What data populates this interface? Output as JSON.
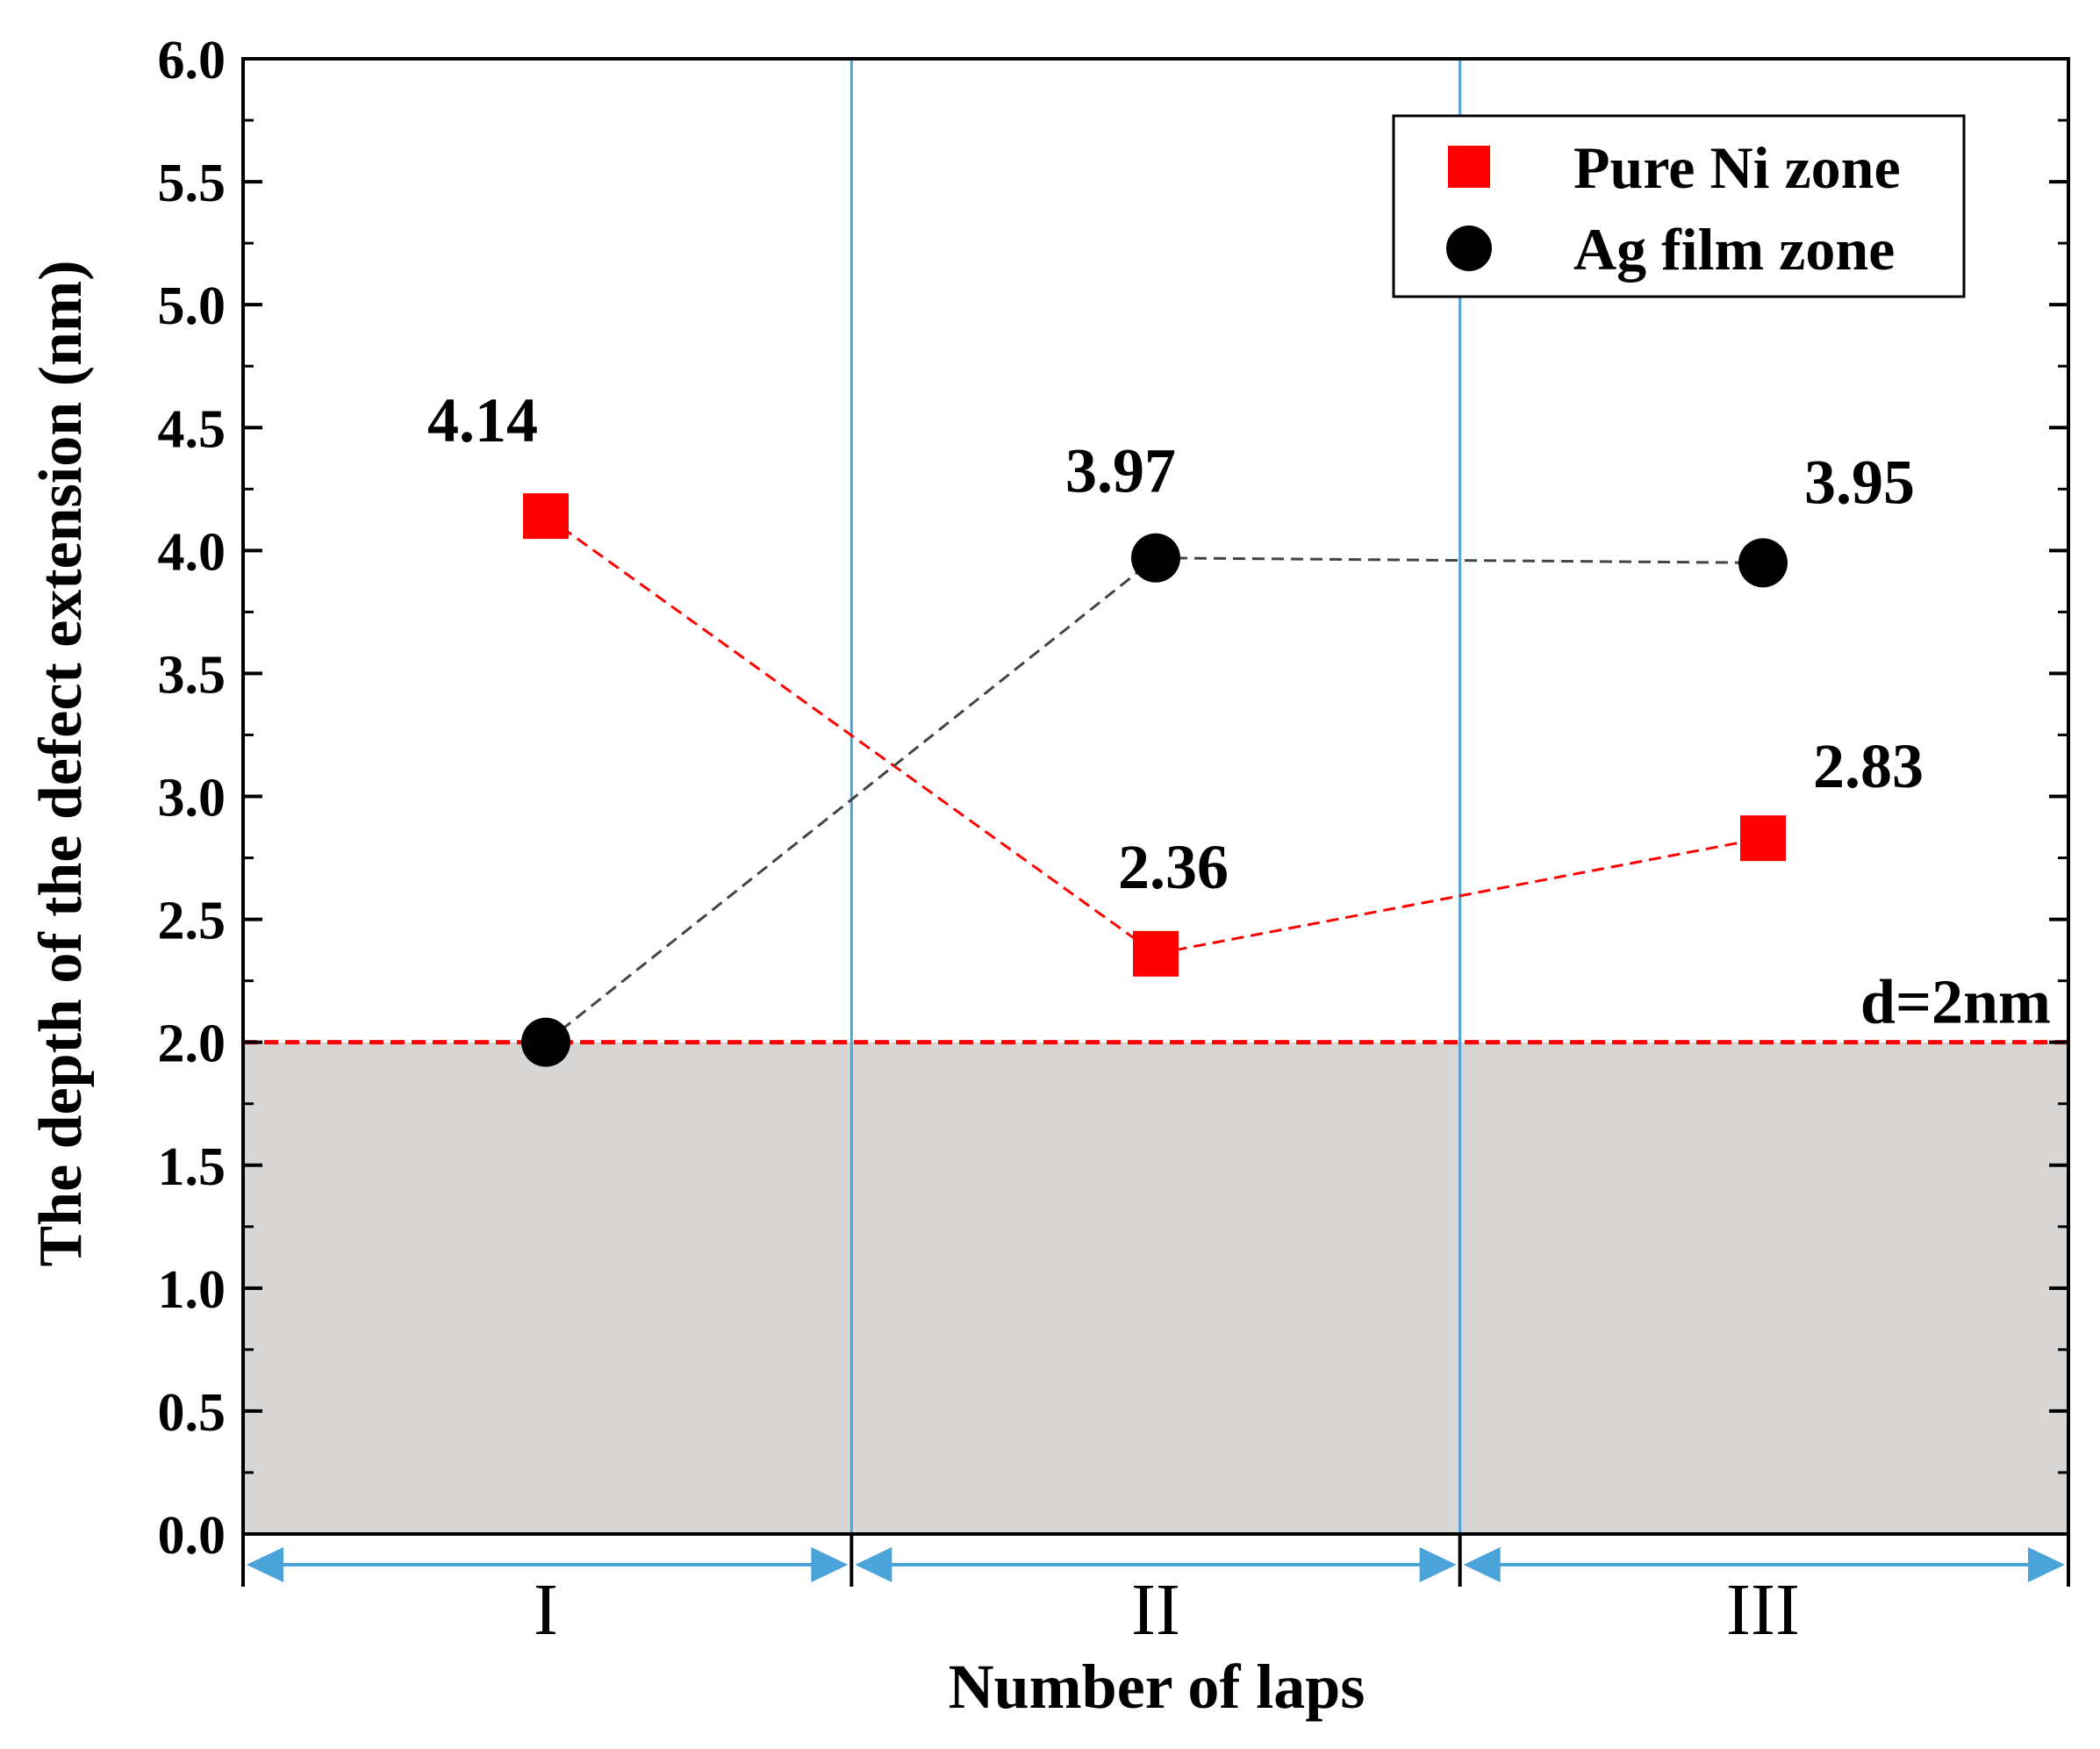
{
  "chart_data": {
    "type": "line",
    "categories": [
      "I",
      "II",
      "III"
    ],
    "series": [
      {
        "name": "Pure Ni zone",
        "marker": "square",
        "color": "#ff0000",
        "values": [
          4.14,
          2.36,
          2.83
        ],
        "labels": [
          "4.14",
          "2.36",
          "2.83"
        ]
      },
      {
        "name": "Ag film zone",
        "marker": "circle",
        "color": "#000000",
        "values": [
          2.0,
          3.97,
          3.95
        ],
        "labels": [
          "",
          "3.97",
          "3.95"
        ]
      }
    ],
    "xlabel": "Number of laps",
    "ylabel": "The depth of the defect extension (nm)",
    "ylim": [
      0,
      6
    ],
    "yticks": [
      "0.0",
      "0.5",
      "1.0",
      "1.5",
      "2.0",
      "2.5",
      "3.0",
      "3.5",
      "4.0",
      "4.5",
      "5.0",
      "5.5",
      "6.0"
    ],
    "threshold": {
      "value": 2.0,
      "label": "d=2nm",
      "color": "#ff0000"
    },
    "shaded_region": {
      "from": 0,
      "to": 2.0,
      "color": "#d8d5d5"
    },
    "legend_position": "top-right",
    "divider_color": "#4aa3d9",
    "grid": false
  }
}
